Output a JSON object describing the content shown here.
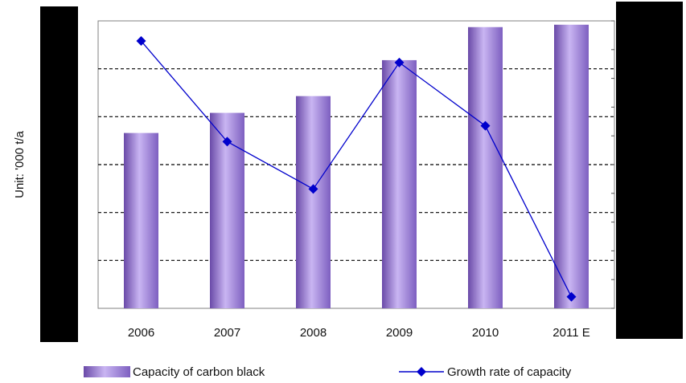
{
  "chart_data": {
    "type": "bar",
    "categories": [
      "2006",
      "2007",
      "2008",
      "2009",
      "2010",
      "2011 E"
    ],
    "ylabel": "Unit: '000 t/a",
    "ylim": [
      0,
      6
    ],
    "y2lim": [
      0,
      1
    ],
    "grid": true,
    "series": [
      {
        "name": "Capacity of carbon black",
        "type": "bar",
        "axis": "left",
        "color": "#9b7fd6",
        "values": [
          3.66,
          4.08,
          4.43,
          5.18,
          5.87,
          5.92
        ]
      },
      {
        "name": "Growth rate of capacity",
        "type": "line",
        "axis": "right",
        "color": "#0000cc",
        "marker": "diamond",
        "values": [
          0.93,
          0.58,
          0.415,
          0.855,
          0.635,
          0.04
        ]
      }
    ],
    "legend": "bottom",
    "redacted_regions": [
      "left-axis-tick-labels",
      "right-axis-tick-labels"
    ]
  }
}
